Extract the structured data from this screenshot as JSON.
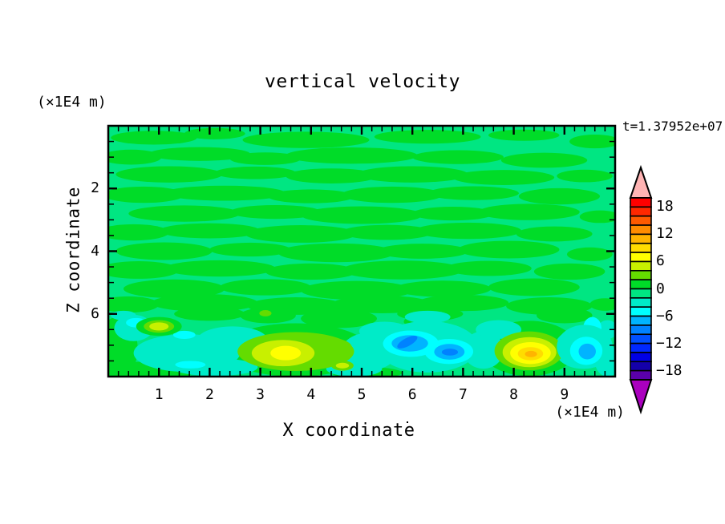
{
  "title": "vertical velocity",
  "time_label": "t=1.37952e+07",
  "axes": {
    "x": {
      "label": "X coordinate",
      "unit_label": "(×1E4 m)",
      "range": [
        0,
        10
      ],
      "major_ticks": [
        "1",
        "2",
        "3",
        "4",
        "5",
        "6",
        "7",
        "8",
        "9"
      ],
      "major_values": [
        1,
        2,
        3,
        4,
        5,
        6,
        7,
        8,
        9
      ],
      "minor_step": 0.2
    },
    "y": {
      "label": "Z coordinate",
      "unit_label": "(×1E4 m)",
      "range": [
        0,
        8
      ],
      "major_ticks": [
        "2",
        "4",
        "6"
      ],
      "major_values": [
        2,
        4,
        6
      ],
      "minor_step": 0.5
    }
  },
  "colorbar": {
    "labels": [
      "18",
      "12",
      "6",
      "0",
      "−6",
      "−12",
      "−18"
    ],
    "label_band_index": [
      1,
      4,
      7,
      10,
      13,
      16,
      19
    ],
    "levels": {
      "min": -20,
      "max": 20,
      "step": 2
    },
    "band_colors": [
      "#FF0000",
      "#FF2800",
      "#FF5A00",
      "#FF8C00",
      "#FFB400",
      "#FFDC00",
      "#FFFF00",
      "#C8F000",
      "#64DC00",
      "#00DC28",
      "#00E682",
      "#00EBC8",
      "#00FFFF",
      "#00B4FF",
      "#0082FF",
      "#0050FF",
      "#0028FF",
      "#0000E6",
      "#1400AA",
      "#5A00AA"
    ],
    "over_color": "#FFB4B4",
    "under_color": "#AA00BE"
  },
  "chart_data": {
    "type": "heatmap",
    "subtype": "filled-contour",
    "title": "vertical velocity",
    "xlabel": "X coordinate (×1E4 m)",
    "ylabel": "Z coordinate (×1E4 m)",
    "time_annotation": "t=1.37952e+07",
    "x_range": [
      0,
      10
    ],
    "z_range": [
      0,
      8
    ],
    "contour_interval": 2,
    "value_range_shown": [
      -20,
      20
    ],
    "background_band_range": [
      -2,
      2
    ],
    "features": [
      {
        "kind": "weak updraft",
        "x": 1.0,
        "z": 1.6,
        "peak": 5
      },
      {
        "kind": "updraft",
        "x": 3.5,
        "z": 0.75,
        "peak": 7
      },
      {
        "kind": "weak updraft",
        "x": 4.6,
        "z": 0.35,
        "peak": 5
      },
      {
        "kind": "downdraft",
        "x": 5.95,
        "z": 1.05,
        "peak": -9
      },
      {
        "kind": "downdraft",
        "x": 6.73,
        "z": 0.8,
        "peak": -9
      },
      {
        "kind": "updraft",
        "x": 8.33,
        "z": 0.75,
        "peak": 11
      },
      {
        "kind": "downdraft",
        "x": 9.43,
        "z": 0.85,
        "peak": -7
      }
    ],
    "field_render": {
      "base_color": "#00E682",
      "green_color": "#00DC28",
      "aqua_color": "#00EBC8",
      "green_streaks": [
        [
          0.9,
          7.62,
          0.85,
          0.22
        ],
        [
          2.1,
          7.75,
          0.6,
          0.18
        ],
        [
          3.9,
          7.55,
          1.25,
          0.26
        ],
        [
          6.3,
          7.65,
          1.05,
          0.22
        ],
        [
          8.2,
          7.7,
          0.7,
          0.18
        ],
        [
          9.6,
          7.5,
          0.5,
          0.22
        ],
        [
          0.45,
          7.0,
          0.6,
          0.24
        ],
        [
          1.8,
          7.1,
          1.0,
          0.22
        ],
        [
          3.1,
          6.95,
          0.7,
          0.2
        ],
        [
          4.8,
          7.05,
          1.3,
          0.26
        ],
        [
          6.9,
          7.0,
          0.9,
          0.22
        ],
        [
          8.6,
          6.9,
          0.85,
          0.24
        ],
        [
          1.2,
          6.45,
          1.05,
          0.26
        ],
        [
          2.9,
          6.5,
          0.8,
          0.2
        ],
        [
          4.4,
          6.4,
          0.9,
          0.24
        ],
        [
          6.0,
          6.45,
          1.1,
          0.26
        ],
        [
          7.8,
          6.35,
          1.0,
          0.24
        ],
        [
          9.4,
          6.4,
          0.55,
          0.2
        ],
        [
          0.7,
          5.8,
          0.8,
          0.26
        ],
        [
          2.3,
          5.85,
          1.2,
          0.24
        ],
        [
          4.0,
          5.75,
          0.85,
          0.22
        ],
        [
          5.6,
          5.8,
          1.0,
          0.26
        ],
        [
          7.2,
          5.85,
          0.9,
          0.22
        ],
        [
          8.9,
          5.75,
          0.8,
          0.26
        ],
        [
          1.5,
          5.2,
          1.1,
          0.26
        ],
        [
          3.3,
          5.25,
          0.9,
          0.22
        ],
        [
          5.0,
          5.15,
          1.2,
          0.28
        ],
        [
          6.8,
          5.2,
          0.8,
          0.22
        ],
        [
          8.3,
          5.25,
          1.0,
          0.26
        ],
        [
          9.7,
          5.1,
          0.4,
          0.2
        ],
        [
          0.5,
          4.6,
          0.7,
          0.26
        ],
        [
          2.0,
          4.65,
          1.0,
          0.24
        ],
        [
          3.8,
          4.55,
          1.1,
          0.28
        ],
        [
          5.5,
          4.6,
          0.9,
          0.24
        ],
        [
          7.1,
          4.65,
          1.05,
          0.26
        ],
        [
          8.8,
          4.55,
          0.75,
          0.24
        ],
        [
          1.1,
          4.0,
          0.95,
          0.28
        ],
        [
          2.8,
          4.05,
          0.8,
          0.22
        ],
        [
          4.5,
          3.95,
          1.15,
          0.3
        ],
        [
          6.2,
          4.0,
          0.9,
          0.24
        ],
        [
          7.9,
          4.05,
          1.0,
          0.28
        ],
        [
          9.5,
          3.9,
          0.45,
          0.22
        ],
        [
          0.6,
          3.4,
          0.8,
          0.28
        ],
        [
          2.2,
          3.45,
          1.1,
          0.26
        ],
        [
          4.0,
          3.35,
          0.9,
          0.26
        ],
        [
          5.8,
          3.4,
          1.2,
          0.3
        ],
        [
          7.5,
          3.45,
          0.85,
          0.24
        ],
        [
          9.1,
          3.35,
          0.7,
          0.26
        ],
        [
          1.3,
          2.8,
          1.0,
          0.3
        ],
        [
          3.1,
          2.85,
          0.9,
          0.26
        ],
        [
          4.9,
          2.75,
          1.1,
          0.3
        ],
        [
          6.6,
          2.8,
          0.95,
          0.26
        ],
        [
          8.4,
          2.85,
          0.9,
          0.28
        ],
        [
          0.4,
          2.3,
          0.6,
          0.26
        ],
        [
          1.9,
          2.35,
          1.05,
          0.28
        ],
        [
          3.7,
          2.25,
          0.95,
          0.28
        ],
        [
          5.4,
          2.3,
          1.0,
          0.28
        ],
        [
          7.0,
          2.35,
          0.9,
          0.26
        ],
        [
          8.7,
          2.25,
          0.85,
          0.28
        ],
        [
          9.8,
          2.3,
          0.3,
          0.2
        ]
      ],
      "green_zones": [
        [
          0.18,
          0.9,
          0.4,
          1.0
        ],
        [
          0.8,
          0.18,
          0.9,
          0.3
        ],
        [
          2.0,
          2.0,
          0.7,
          0.22
        ],
        [
          3.15,
          1.95,
          0.55,
          0.25
        ],
        [
          4.55,
          1.85,
          0.75,
          0.3
        ],
        [
          6.35,
          2.0,
          0.65,
          0.22
        ],
        [
          6.15,
          1.75,
          0.32,
          0.2
        ],
        [
          5.1,
          0.12,
          0.7,
          0.18
        ],
        [
          9.0,
          1.95,
          0.55,
          0.25
        ],
        [
          3.7,
          0.85,
          1.45,
          0.85
        ],
        [
          8.3,
          0.9,
          0.95,
          0.88
        ]
      ],
      "aqua_patches": [
        [
          0.5,
          1.55,
          0.38,
          0.42
        ],
        [
          1.55,
          0.75,
          1.05,
          0.6
        ],
        [
          2.45,
          1.15,
          0.7,
          0.45
        ],
        [
          2.1,
          0.3,
          0.85,
          0.28
        ],
        [
          5.15,
          0.8,
          0.55,
          0.6
        ],
        [
          5.45,
          1.45,
          0.5,
          0.3
        ],
        [
          4.85,
          0.25,
          0.55,
          0.25
        ],
        [
          7.4,
          0.85,
          0.4,
          0.6
        ],
        [
          7.7,
          1.5,
          0.45,
          0.3
        ],
        [
          9.35,
          0.9,
          0.55,
          0.65
        ],
        [
          9.85,
          1.5,
          0.2,
          0.3
        ],
        [
          6.3,
          1.9,
          0.45,
          0.2
        ],
        [
          0.3,
          1.95,
          0.25,
          0.15
        ],
        [
          9.85,
          0.5,
          0.25,
          0.5
        ]
      ],
      "cyan_patches": [
        [
          0.55,
          1.72,
          0.2,
          0.15
        ],
        [
          1.5,
          1.33,
          0.22,
          0.13
        ],
        [
          1.62,
          0.38,
          0.3,
          0.12
        ],
        [
          9.55,
          1.55,
          0.18,
          0.35
        ]
      ],
      "features": [
        {
          "name": "left-small-updraft",
          "rings": [
            [
              "#00DC28",
              1.0,
              1.6,
              0.45,
              0.3
            ],
            [
              "#64DC00",
              1.0,
              1.6,
              0.3,
              0.2
            ],
            [
              "#C8F000",
              1.0,
              1.6,
              0.19,
              0.13
            ]
          ]
        },
        {
          "name": "left-big-updraft",
          "rings": [
            [
              "#64DC00",
              3.7,
              0.8,
              1.15,
              0.62
            ],
            [
              "#64DC00",
              4.35,
              0.95,
              0.45,
              0.28
            ],
            [
              "#C8F000",
              3.45,
              0.75,
              0.62,
              0.42
            ],
            [
              "#FFFF00",
              3.5,
              0.75,
              0.3,
              0.23
            ]
          ]
        },
        {
          "name": "small-updraft-dot",
          "rings": [
            [
              "#64DC00",
              4.62,
              0.35,
              0.22,
              0.16
            ],
            [
              "#C8F000",
              4.62,
              0.35,
              0.13,
              0.09
            ]
          ]
        },
        {
          "name": "tiny-dot",
          "rings": [
            [
              "#64DC00",
              3.1,
              2.02,
              0.12,
              0.1
            ]
          ]
        },
        {
          "name": "center-downdraft",
          "rings": [
            [
              "#00EBC8",
              6.3,
              0.95,
              1.0,
              0.82
            ],
            [
              "#00FFFF",
              5.97,
              1.05,
              0.55,
              0.42
            ],
            [
              "#00FFFF",
              6.72,
              0.8,
              0.48,
              0.4
            ],
            [
              "#00B4FF",
              5.95,
              1.06,
              0.36,
              0.26
            ],
            [
              "#00B4FF",
              6.73,
              0.79,
              0.3,
              0.25
            ],
            [
              "#0082FF",
              5.9,
              1.1,
              0.22,
              0.13,
              -28
            ],
            [
              "#0082FF",
              6.74,
              0.78,
              0.16,
              0.11
            ]
          ]
        },
        {
          "name": "right-big-updraft",
          "rings": [
            [
              "#64DC00",
              8.3,
              0.82,
              0.68,
              0.62
            ],
            [
              "#C8F000",
              8.31,
              0.78,
              0.53,
              0.48
            ],
            [
              "#FFFF00",
              8.33,
              0.75,
              0.4,
              0.35
            ],
            [
              "#FFDC00",
              8.33,
              0.73,
              0.25,
              0.21
            ],
            [
              "#FFB400",
              8.34,
              0.72,
              0.12,
              0.1
            ]
          ]
        },
        {
          "name": "right-downdraft",
          "rings": [
            [
              "#00EBC8",
              9.4,
              0.95,
              0.55,
              0.7
            ],
            [
              "#00FFFF",
              9.43,
              0.82,
              0.32,
              0.45
            ],
            [
              "#00B4FF",
              9.45,
              0.8,
              0.17,
              0.25
            ]
          ]
        }
      ]
    }
  }
}
